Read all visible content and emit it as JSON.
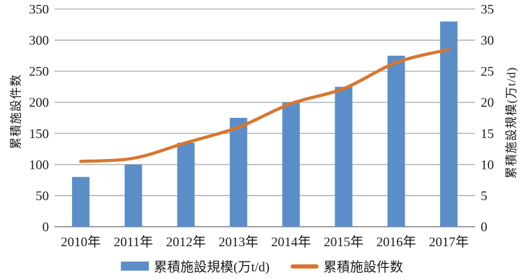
{
  "chart_data": {
    "type": "bar",
    "subtype": "combo-bar-line-dual-axis",
    "categories": [
      "2010年",
      "2011年",
      "2012年",
      "2013年",
      "2014年",
      "2015年",
      "2016年",
      "2017年"
    ],
    "series": [
      {
        "name": "累積施設規模(万t/d)",
        "type": "bar",
        "axis": "right",
        "values": [
          8,
          10,
          13.5,
          17.5,
          20,
          22.5,
          27.5,
          33
        ]
      },
      {
        "name": "累積施設件数",
        "type": "line",
        "axis": "left",
        "values": [
          105,
          110,
          135,
          160,
          198,
          222,
          264,
          285
        ]
      }
    ],
    "left_axis": {
      "label": "累積施設件数",
      "min": 0,
      "max": 350,
      "step": 50,
      "tick_labels": [
        "0",
        "50",
        "100",
        "150",
        "200",
        "250",
        "300",
        "350"
      ]
    },
    "right_axis": {
      "label": "累積施設規模(万t/d)",
      "min": 0,
      "max": 35,
      "step": 5,
      "tick_labels": [
        "0",
        "5",
        "10",
        "15",
        "20",
        "25",
        "30",
        "35"
      ]
    },
    "title": "",
    "grid": true,
    "legend_position": "bottom"
  },
  "colors": {
    "bar": "#5B8EC8",
    "line": "#D9762E",
    "grid": "#A6A6A6",
    "baseline": "#808080",
    "text": "#1A1A1A",
    "background": "#FFFFFF"
  }
}
